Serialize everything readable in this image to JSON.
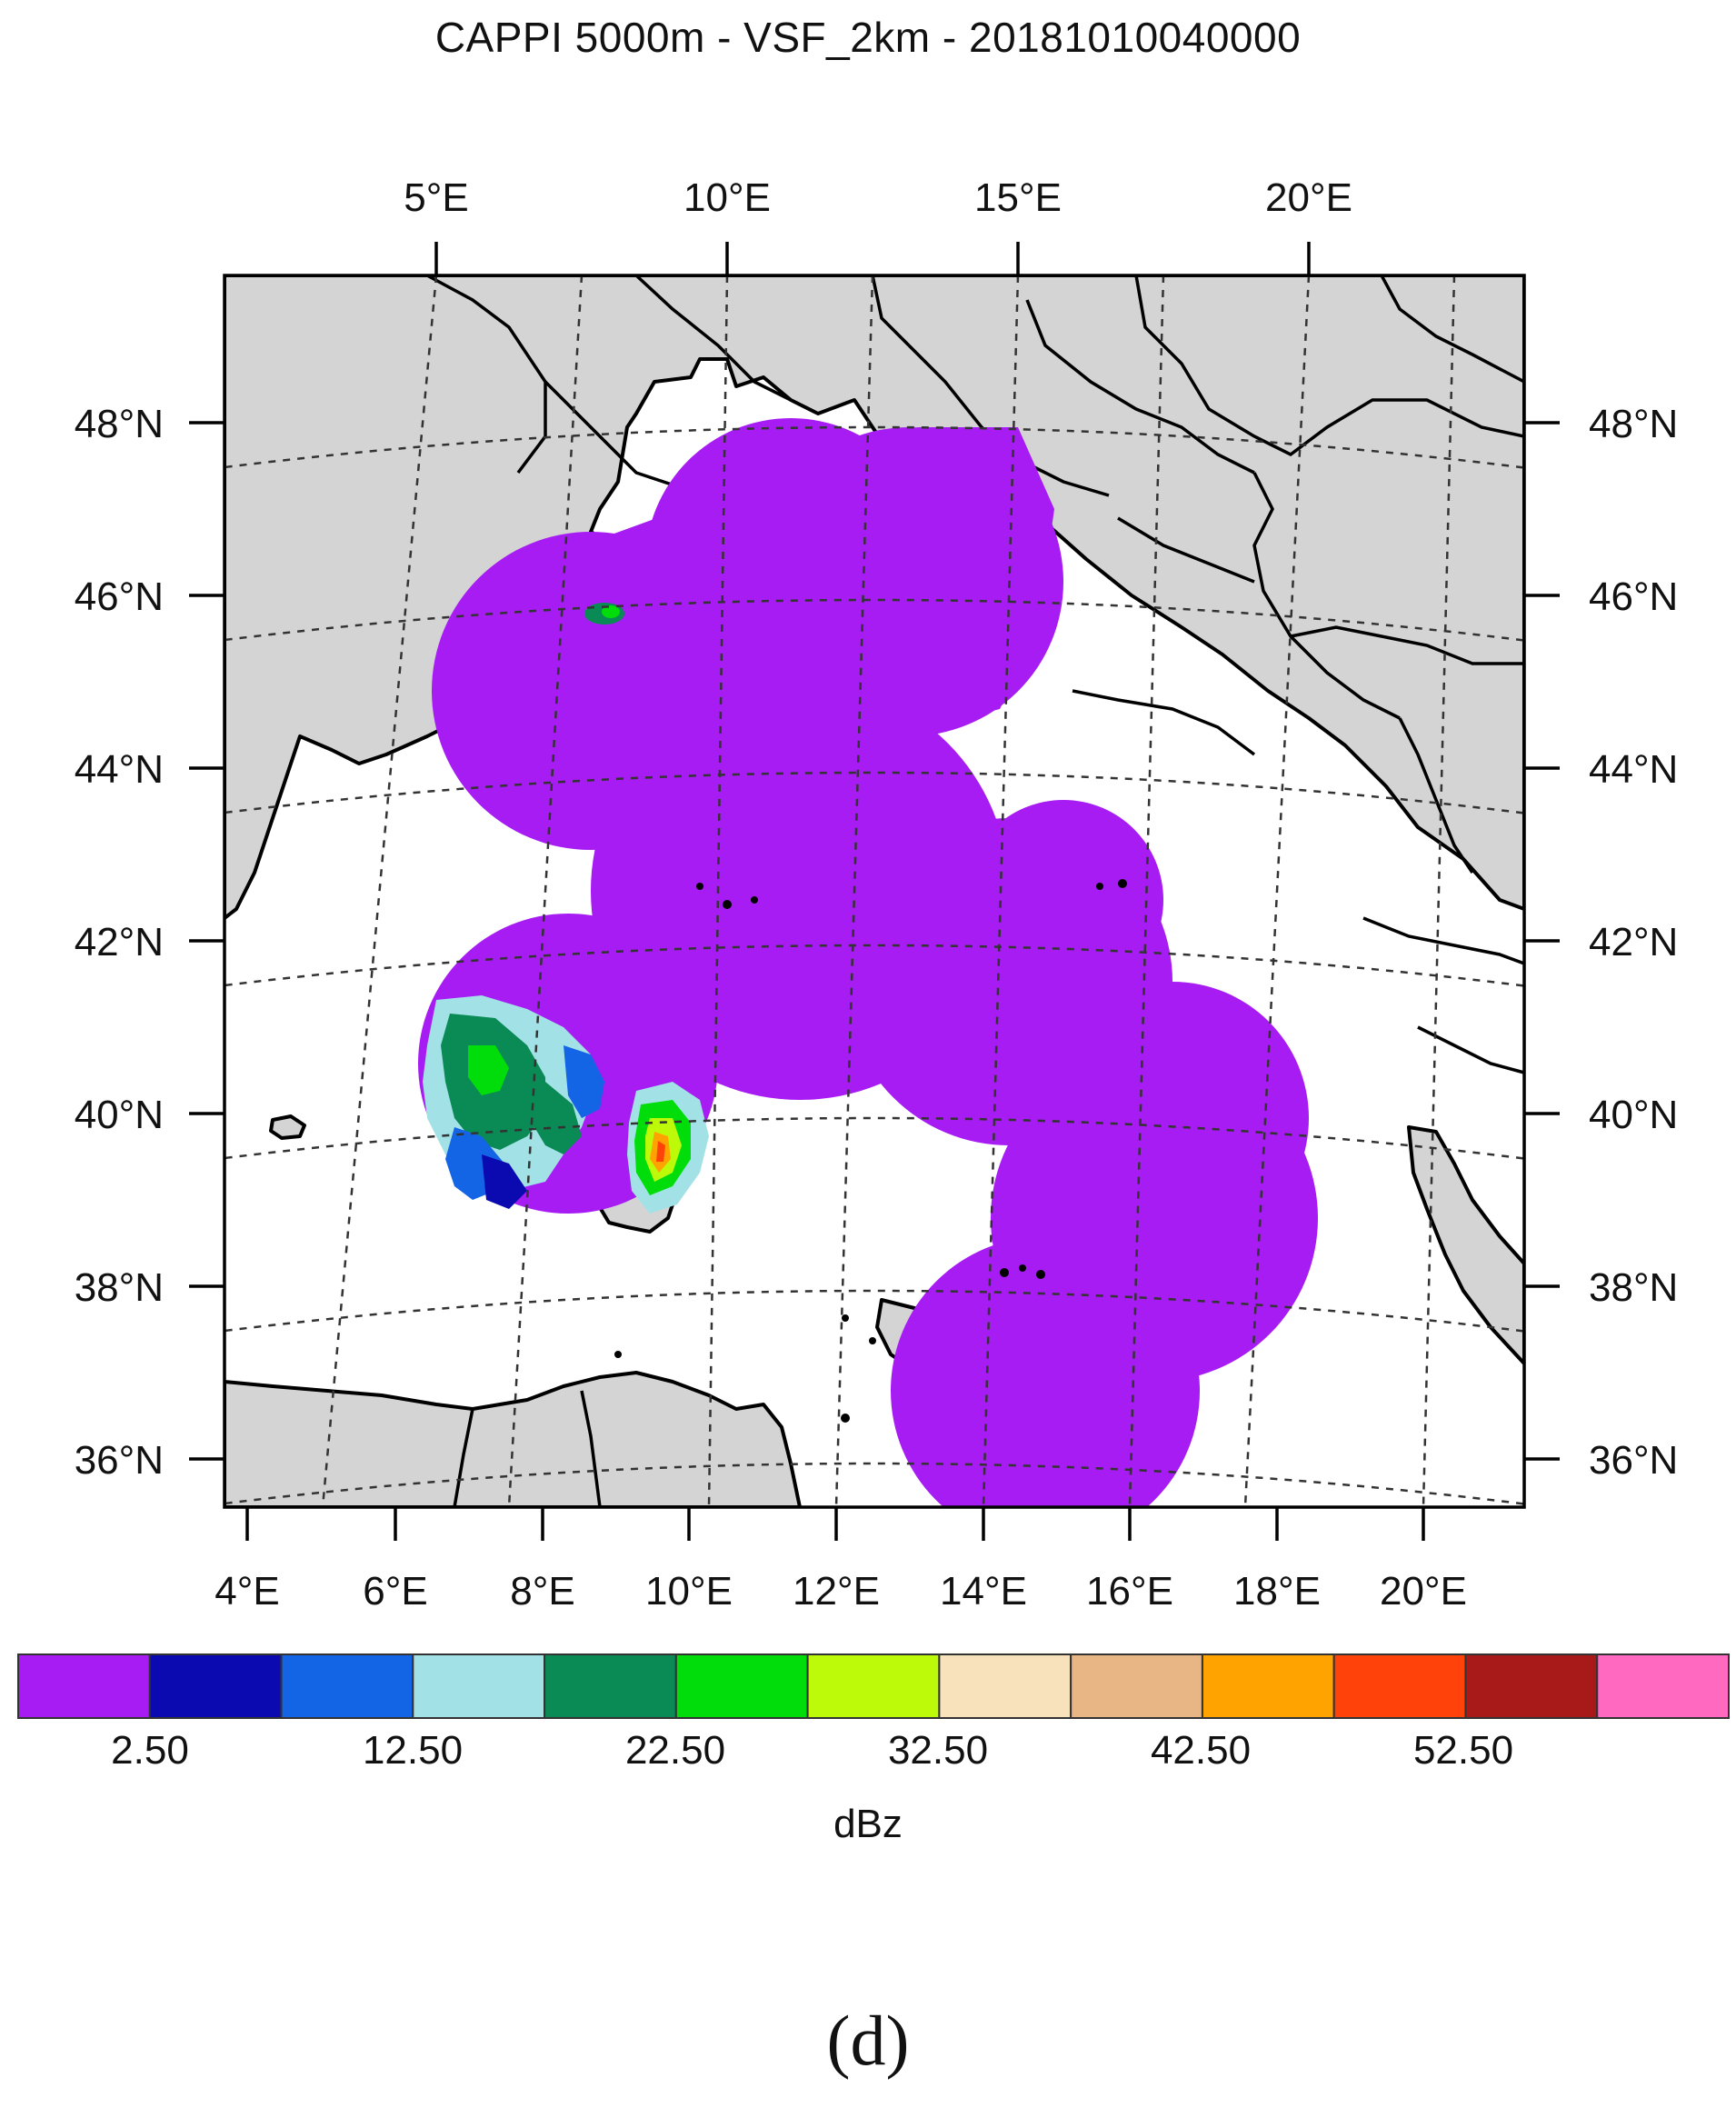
{
  "title": "CAPPI 5000m - VSF_2km - 20181010040000",
  "panel_label": "(d)",
  "map": {
    "top_lon_labels": [
      "5°E",
      "10°E",
      "15°E",
      "20°E"
    ],
    "bottom_lon_labels": [
      "4°E",
      "6°E",
      "8°E",
      "10°E",
      "12°E",
      "14°E",
      "16°E",
      "18°E",
      "20°E"
    ],
    "lat_labels": [
      "48°N",
      "46°N",
      "44°N",
      "42°N",
      "40°N",
      "38°N",
      "36°N"
    ],
    "colors": {
      "land": "#d4d4d4",
      "sea": "#ffffff",
      "coverage": "#a61cf2",
      "border": "#000000",
      "grid": "#333333"
    }
  },
  "legend": {
    "unit": "dBz",
    "tick_labels": [
      "2.50",
      "12.50",
      "22.50",
      "32.50",
      "42.50",
      "52.50"
    ],
    "bins": [
      {
        "color": "#a61cf2"
      },
      {
        "color": "#0a0ab0"
      },
      {
        "color": "#1465e6"
      },
      {
        "color": "#a2e2e6"
      },
      {
        "color": "#0a8a55"
      },
      {
        "color": "#00dd0a"
      },
      {
        "color": "#bdfa0a"
      },
      {
        "color": "#f8e2bc"
      },
      {
        "color": "#e8b685"
      },
      {
        "color": "#ffa300"
      },
      {
        "color": "#ff420a"
      },
      {
        "color": "#a81a1a"
      },
      {
        "color": "#ff6ac0"
      }
    ]
  }
}
